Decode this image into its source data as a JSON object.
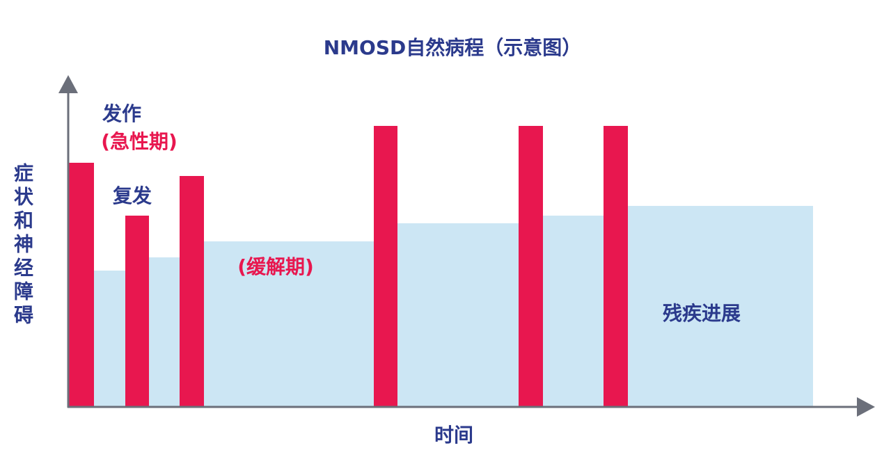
{
  "title": "NMOSD自然病程（示意图）",
  "labels": {
    "attack": "发作",
    "acute": "(急性期)",
    "relapse": "复发",
    "remission": "(缓解期)",
    "disability": "残疾进展"
  },
  "axes": {
    "x": "时间",
    "y": "症状和神经障碍"
  }
}
